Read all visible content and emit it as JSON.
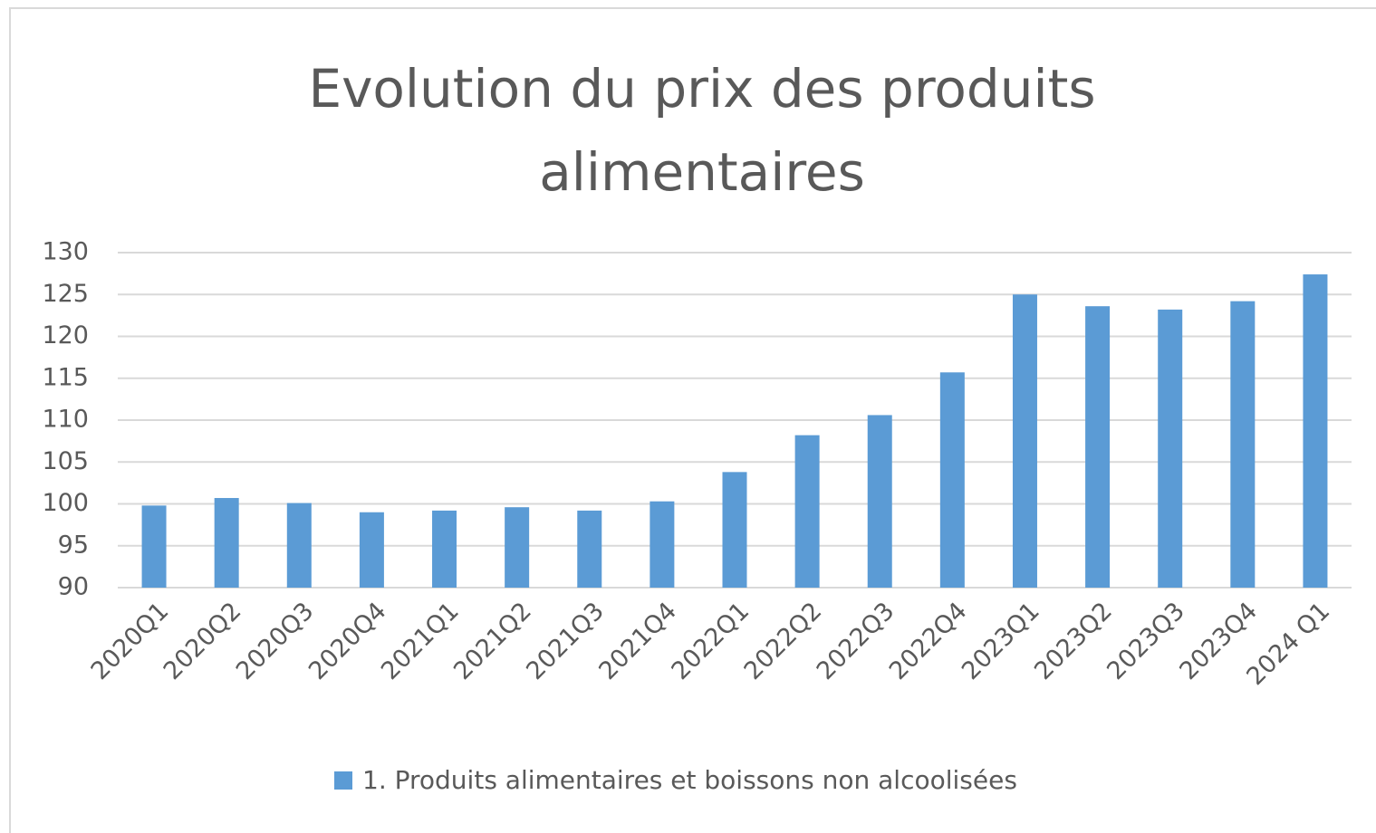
{
  "chart_data": {
    "type": "bar",
    "title": "Evolution du prix des produits alimentaires",
    "categories": [
      "2020Q1",
      "2020Q2",
      "2020Q3",
      "2020Q4",
      "2021Q1",
      "2021Q2",
      "2021Q3",
      "2021Q4",
      "2022Q1",
      "2022Q2",
      "2022Q3",
      "2022Q4",
      "2023Q1",
      "2023Q2",
      "2023Q3",
      "2023Q4",
      "2024 Q1"
    ],
    "series": [
      {
        "name": "1. Produits alimentaires et boissons non alcoolisées",
        "color": "#5b9bd5",
        "values": [
          99.8,
          100.7,
          100.1,
          99.0,
          99.2,
          99.6,
          99.2,
          100.3,
          103.8,
          108.2,
          110.6,
          115.7,
          125.0,
          123.6,
          123.2,
          124.2,
          127.4
        ]
      }
    ],
    "ylim": [
      90,
      130
    ],
    "yticks": [
      90,
      95,
      100,
      105,
      110,
      115,
      120,
      125,
      130
    ],
    "grid": true,
    "legend": "bottom"
  }
}
